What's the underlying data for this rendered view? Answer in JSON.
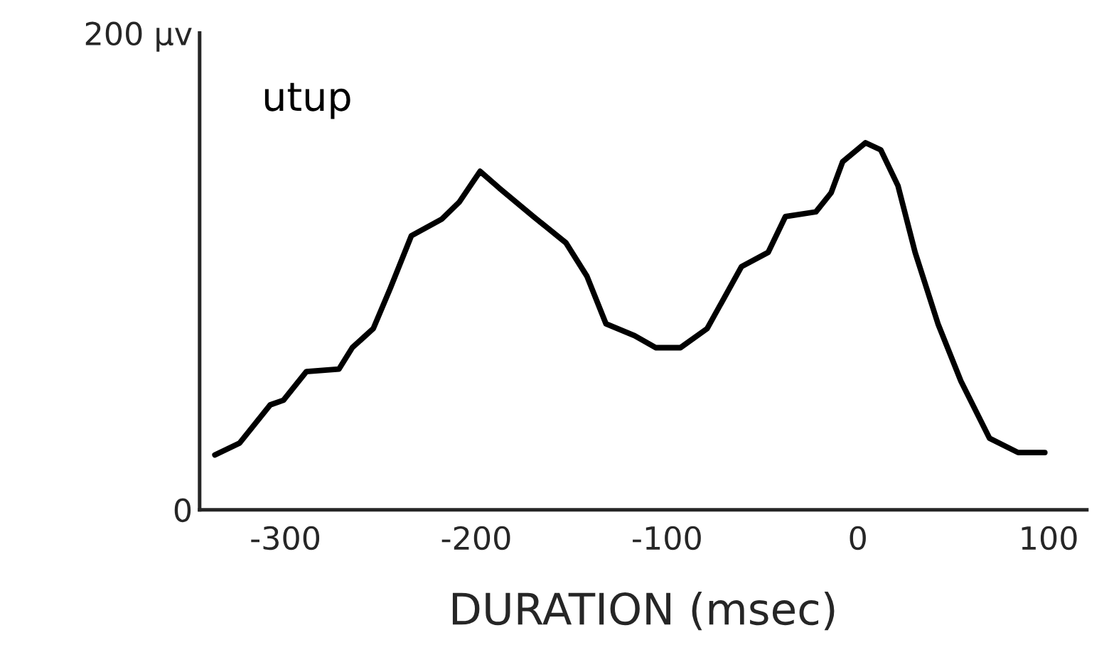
{
  "chart_data": {
    "type": "line",
    "xlabel": "DURATION (msec)",
    "xlim": [
      -345,
      120
    ],
    "xticks": [
      -300,
      -200,
      -100,
      0,
      100
    ],
    "ylim": [
      0,
      200
    ],
    "yticks": [
      0,
      {
        "value": 200,
        "label": "200 µv"
      }
    ],
    "grid": false,
    "legend": false,
    "marker": "none",
    "line_style": "solid",
    "series": [
      {
        "name": "utup",
        "color": "#000000",
        "x": [
          -337,
          -324,
          -308,
          -301,
          -289,
          -272,
          -265,
          -254,
          -245,
          -234,
          -218,
          -209,
          -198,
          -188,
          -170,
          -153,
          -142,
          -132,
          -117,
          -106,
          -93,
          -79,
          -70,
          -61,
          -47,
          -38,
          -22,
          -14,
          -8,
          4,
          12,
          21,
          30,
          42,
          54,
          69,
          84,
          98
        ],
        "values": [
          23,
          28,
          44,
          46,
          58,
          59,
          68,
          76,
          93,
          115,
          122,
          129,
          142,
          135,
          123,
          112,
          98,
          78,
          73,
          68,
          68,
          76,
          89,
          102,
          108,
          123,
          125,
          133,
          146,
          154,
          151,
          136,
          108,
          78,
          54,
          30,
          24,
          24
        ]
      }
    ]
  }
}
